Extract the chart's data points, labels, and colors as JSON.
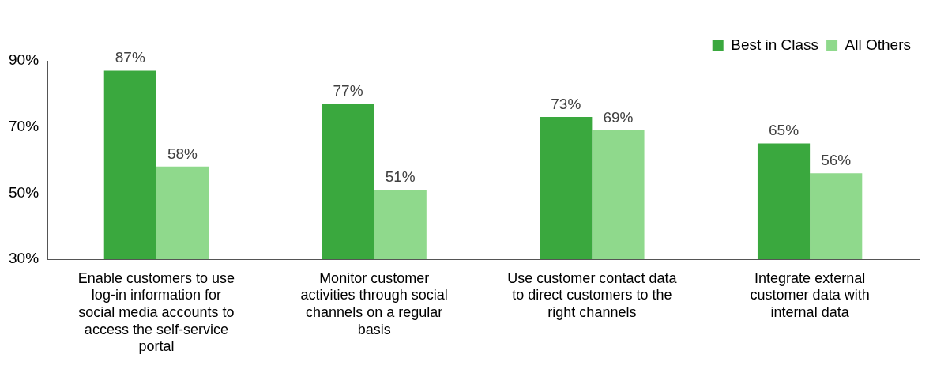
{
  "chart_data": {
    "type": "bar",
    "categories": [
      "Enable customers to use log-in information for social media accounts to access the self-service portal",
      "Monitor customer activities through social channels on a regular basis",
      "Use customer contact data to direct customers to the right channels",
      "Integrate external customer data with internal data"
    ],
    "series": [
      {
        "name": "Best in Class",
        "color": "#3aa83e",
        "values": [
          87,
          77,
          73,
          65
        ],
        "value_labels": [
          "87%",
          "77%",
          "73%",
          "65%"
        ]
      },
      {
        "name": "All Others",
        "color": "#8fd98c",
        "values": [
          58,
          51,
          69,
          56
        ],
        "value_labels": [
          "58%",
          "51%",
          "69%",
          "56%"
        ]
      }
    ],
    "ylim": [
      30,
      90
    ],
    "yticks": [
      {
        "value": 30,
        "label": "30%"
      },
      {
        "value": 50,
        "label": "50%"
      },
      {
        "value": 70,
        "label": "70%"
      },
      {
        "value": 90,
        "label": "90%"
      }
    ],
    "grid": false,
    "legend": "top right"
  }
}
